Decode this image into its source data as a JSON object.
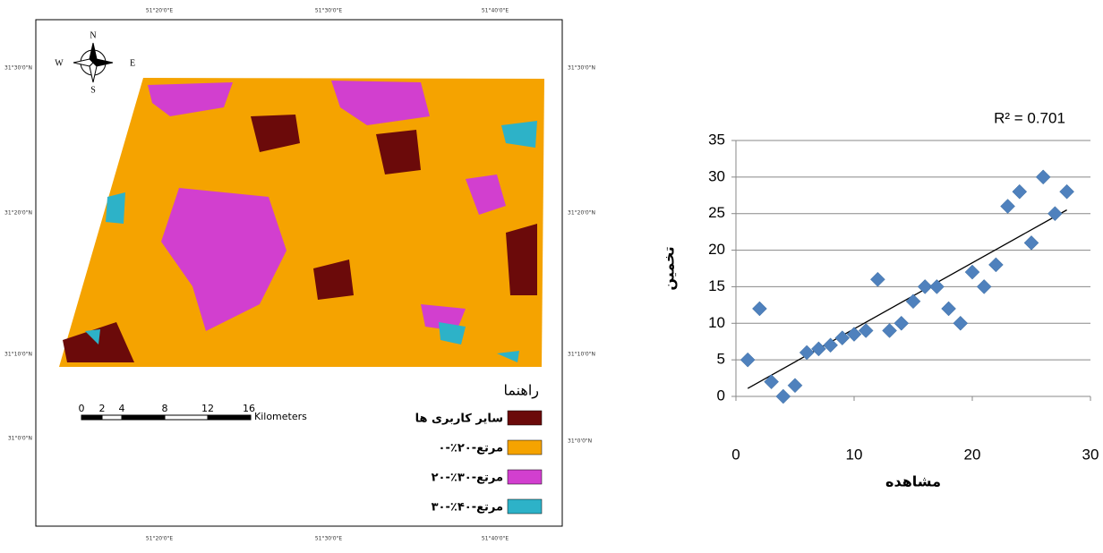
{
  "map": {
    "top_ticks": [
      "51°20'0\"E",
      "51°30'0\"E",
      "51°40'0\"E"
    ],
    "bottom_ticks": [
      "51°20'0\"E",
      "51°30'0\"E",
      "51°40'0\"E"
    ],
    "left_ticks": [
      "31°30'0\"N",
      "31°20'0\"N",
      "31°10'0\"N",
      "31°0'0\"N"
    ],
    "right_ticks": [
      "31°30'0\"N",
      "31°20'0\"N",
      "31°10'0\"N",
      "31°0'0\"N"
    ],
    "compass": {
      "n": "N",
      "s": "S",
      "e": "E",
      "w": "W"
    },
    "scale_bar": {
      "labels": [
        "0",
        "2",
        "4",
        "8",
        "12",
        "16"
      ],
      "unit": "Kilometers"
    },
    "legend": {
      "title": "راهنما",
      "items": [
        "سایر کاربری ها",
        "مرتع-۲۰٪-۰",
        "مرتع-۳۰٪-۲۰",
        "مرتع-۴۰٪-۳۰"
      ]
    }
  },
  "chart_data": {
    "type": "scatter",
    "x": [
      1,
      2,
      3,
      4,
      5,
      6,
      7,
      8,
      9,
      10,
      11,
      12,
      13,
      14,
      15,
      16,
      17,
      18,
      19,
      20,
      21,
      22,
      23,
      24,
      25,
      26,
      27,
      28
    ],
    "values": [
      5,
      12,
      2,
      0,
      1.5,
      6,
      6.5,
      7,
      8,
      8.5,
      9,
      16,
      9,
      10,
      13,
      15,
      15,
      12,
      10,
      17,
      15,
      18,
      26,
      28,
      21,
      30,
      25,
      28
    ],
    "color": "#4f81bd",
    "trendline": {
      "x": [
        1,
        28
      ],
      "y": [
        1.1,
        25.5
      ]
    },
    "annotation": "R² = 0.701",
    "x_label": "مشاهده",
    "y_label": "تخمین",
    "xlim": [
      0,
      30
    ],
    "xticks": [
      0,
      10,
      20,
      30
    ],
    "ylim": [
      0,
      35
    ],
    "yticks": [
      0,
      5,
      10,
      15,
      20,
      25,
      30,
      35
    ],
    "grid": true
  }
}
